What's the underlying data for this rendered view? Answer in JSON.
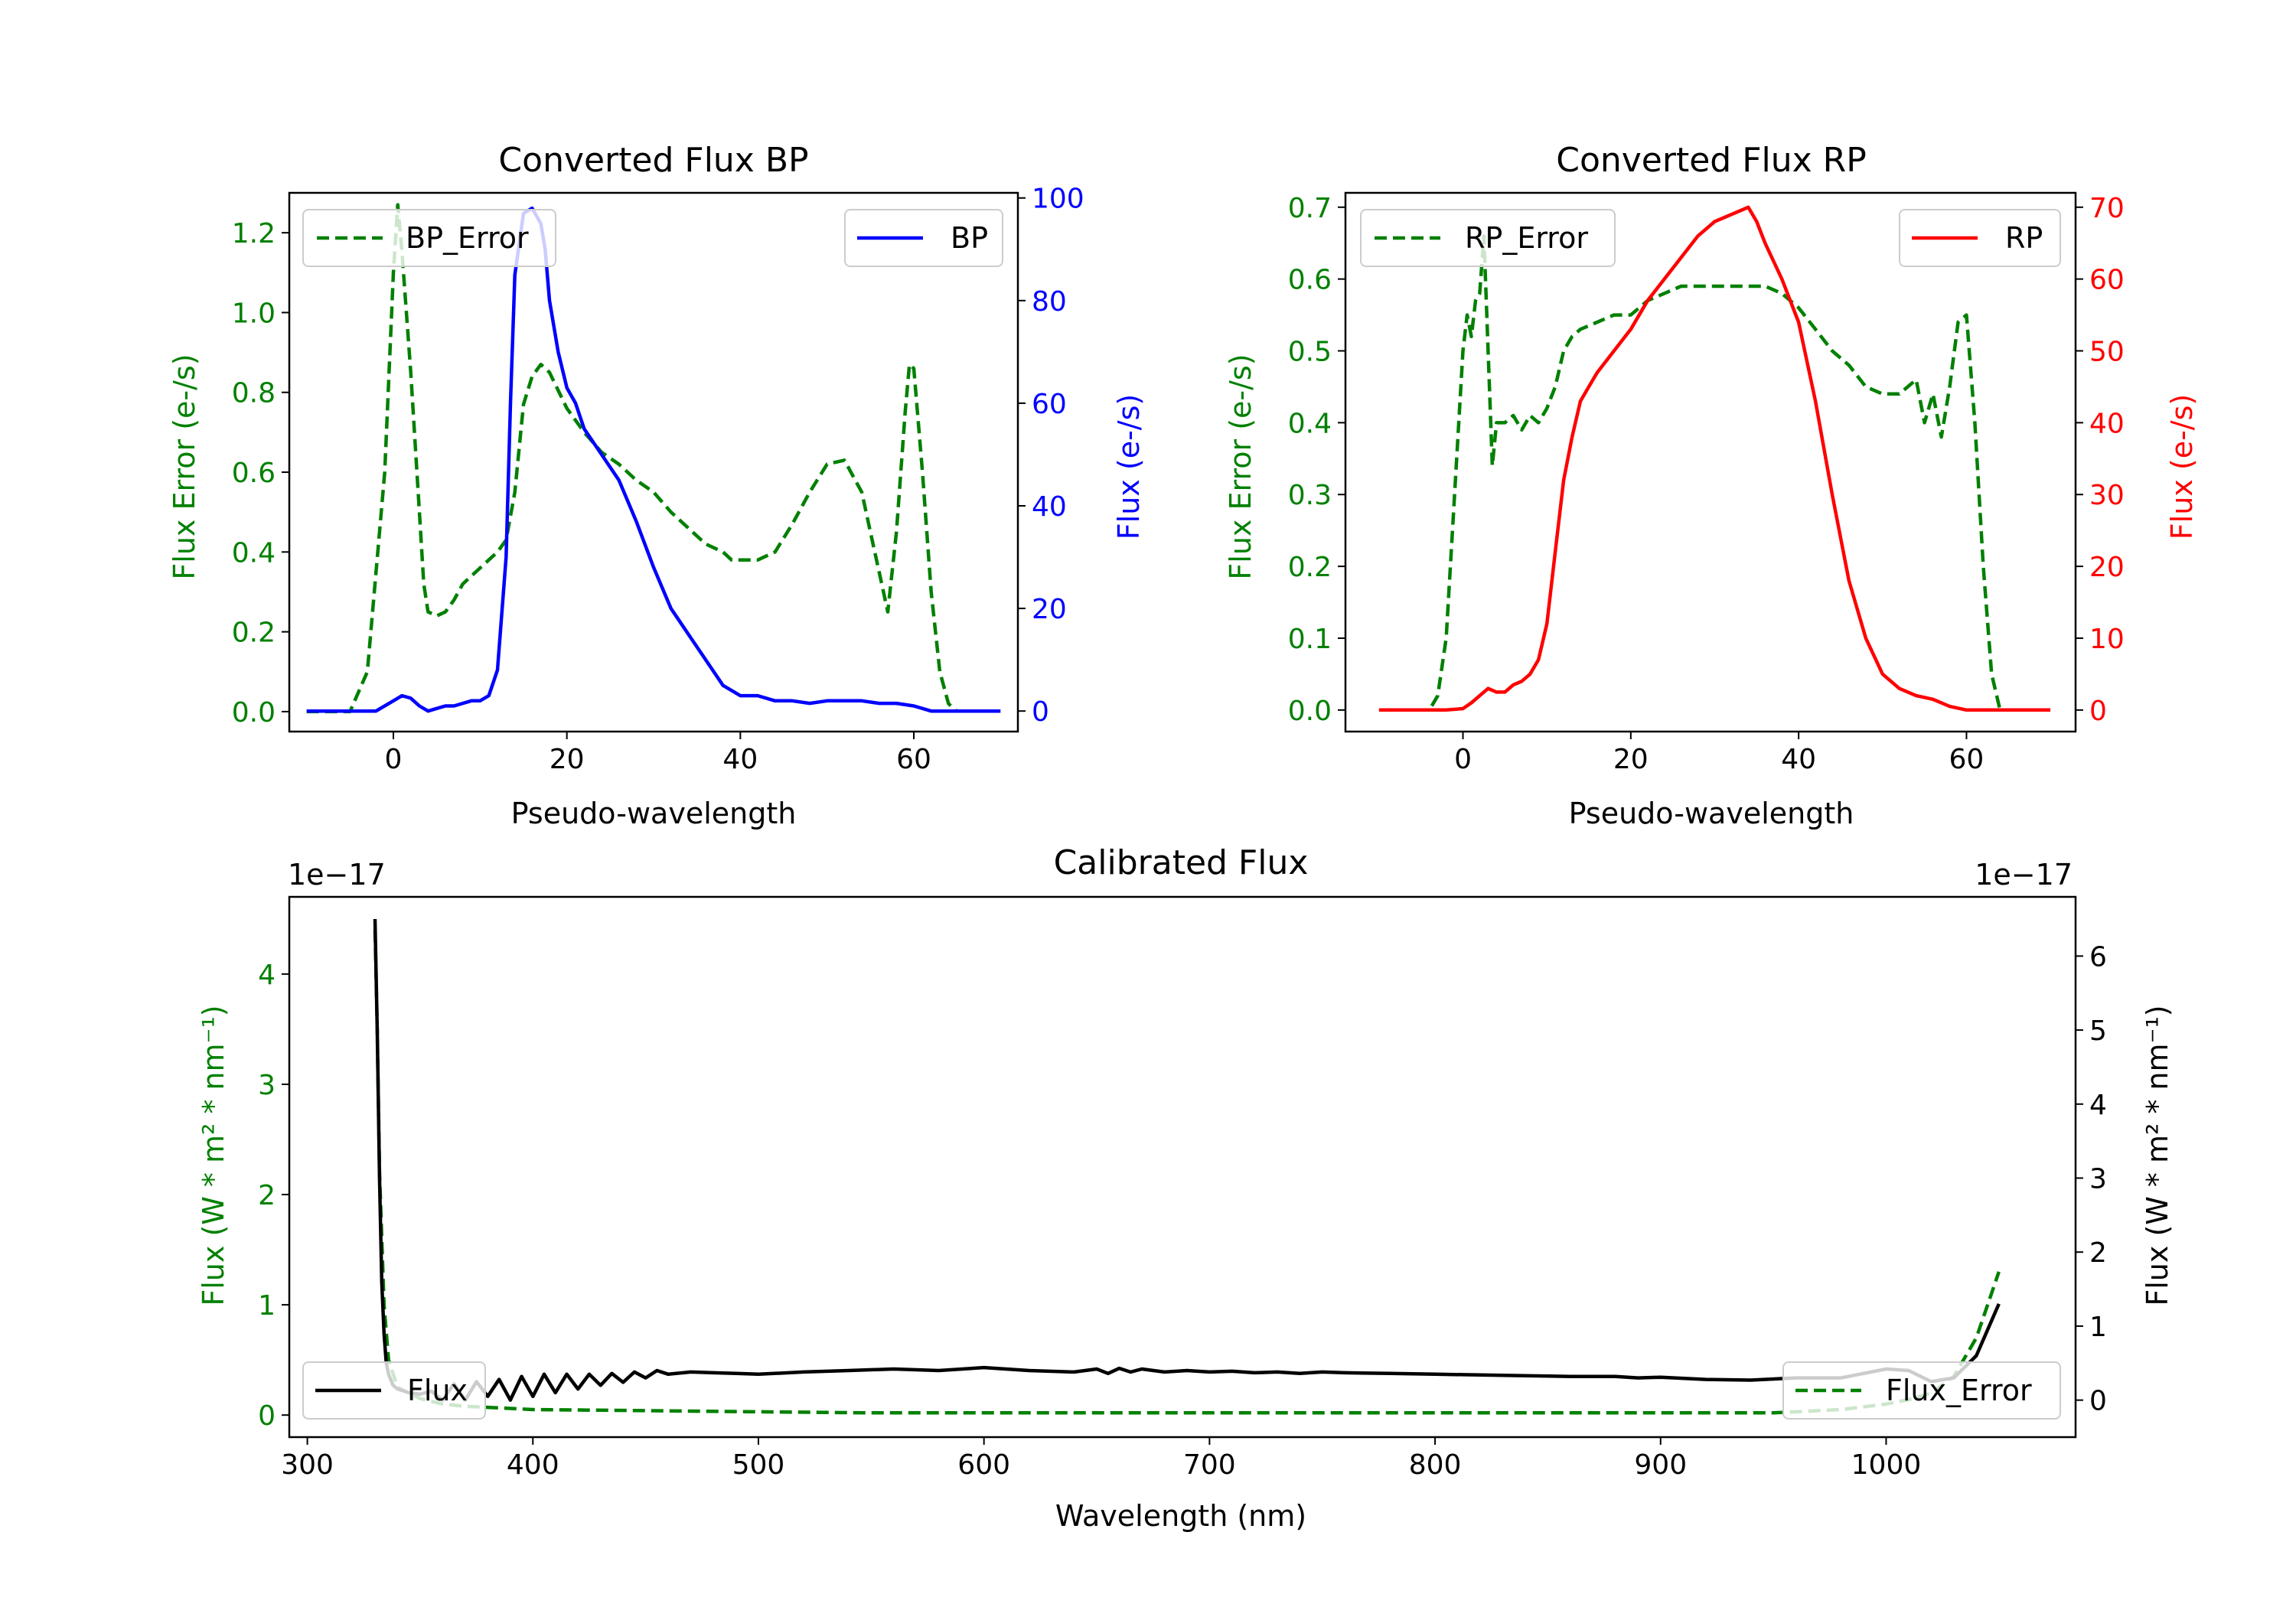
{
  "colors": {
    "green": "#008000",
    "blue": "#0000ff",
    "red": "#ff0000",
    "black": "#000000"
  },
  "chart_data": [
    {
      "type": "line",
      "title": "Converted Flux BP",
      "xlabel": "Pseudo-wavelength",
      "ylabel_left": "Flux Error (e-/s)",
      "ylabel_right": "Flux (e-/s)",
      "xlim": [
        -12,
        72
      ],
      "ylim_left": [
        -0.05,
        1.3
      ],
      "ylim_right": [
        -4,
        101
      ],
      "xticks": [
        0,
        20,
        40,
        60
      ],
      "yticks_left": [
        0.0,
        0.2,
        0.4,
        0.6,
        0.8,
        1.0,
        1.2
      ],
      "ytick_labels_left": [
        "0.0",
        "0.2",
        "0.4",
        "0.6",
        "0.8",
        "1.0",
        "1.2"
      ],
      "yticks_right": [
        0,
        20,
        40,
        60,
        80,
        100
      ],
      "legend_left": {
        "label": "BP_Error",
        "placement": "top-left"
      },
      "legend_right": {
        "label": "BP",
        "placement": "top-right"
      },
      "series": [
        {
          "name": "BP_Error",
          "axis": "left",
          "style": "dashed",
          "color": "#008000",
          "x": [
            -10,
            -5,
            -3,
            -1,
            0,
            0.5,
            1,
            2,
            3,
            3.5,
            4,
            5,
            6,
            7,
            8,
            10,
            12,
            13,
            14,
            15,
            16,
            17,
            18,
            20,
            22,
            24,
            26,
            28,
            30,
            32,
            34,
            36,
            38,
            39,
            40,
            42,
            44,
            46,
            48,
            50,
            52,
            54,
            55,
            56,
            57,
            58,
            59,
            59.5,
            60,
            61,
            62,
            63,
            64,
            65
          ],
          "values": [
            0,
            0,
            0.1,
            0.6,
            1.1,
            1.27,
            1.15,
            0.85,
            0.5,
            0.32,
            0.25,
            0.24,
            0.25,
            0.28,
            0.32,
            0.36,
            0.4,
            0.43,
            0.55,
            0.77,
            0.84,
            0.87,
            0.85,
            0.76,
            0.7,
            0.65,
            0.62,
            0.58,
            0.55,
            0.5,
            0.46,
            0.42,
            0.4,
            0.38,
            0.38,
            0.38,
            0.4,
            0.47,
            0.55,
            0.62,
            0.63,
            0.55,
            0.45,
            0.35,
            0.25,
            0.45,
            0.75,
            0.87,
            0.86,
            0.6,
            0.3,
            0.1,
            0.02,
            0
          ]
        },
        {
          "name": "BP",
          "axis": "right",
          "style": "solid",
          "color": "#0000ff",
          "x": [
            -10,
            -2,
            0,
            1,
            2,
            3,
            4,
            5,
            6,
            7,
            8,
            9,
            10,
            11,
            12,
            13,
            13.5,
            14,
            15,
            16,
            17,
            17.5,
            18,
            19,
            20,
            21,
            22,
            24,
            26,
            28,
            30,
            32,
            34,
            36,
            38,
            40,
            42,
            44,
            46,
            48,
            50,
            52,
            54,
            56,
            58,
            60,
            62,
            64,
            66,
            70
          ],
          "values": [
            0,
            0,
            2,
            3,
            2.5,
            1,
            0,
            0.5,
            1,
            1,
            1.5,
            2,
            2,
            3,
            8,
            30,
            60,
            85,
            97,
            98,
            95,
            90,
            80,
            70,
            63,
            60,
            55,
            50,
            45,
            37,
            28,
            20,
            15,
            10,
            5,
            3,
            3,
            2,
            2,
            1.5,
            2,
            2,
            2,
            1.5,
            1.5,
            1,
            0,
            0,
            0,
            0
          ]
        }
      ]
    },
    {
      "type": "line",
      "title": "Converted Flux RP",
      "xlabel": "Pseudo-wavelength",
      "ylabel_left": "Flux Error (e-/s)",
      "ylabel_right": "Flux (e-/s)",
      "xlim": [
        -14,
        73
      ],
      "ylim_left": [
        -0.03,
        0.72
      ],
      "ylim_right": [
        -3,
        72
      ],
      "xticks": [
        0,
        20,
        40,
        60
      ],
      "yticks_left": [
        0.0,
        0.1,
        0.2,
        0.3,
        0.4,
        0.5,
        0.6,
        0.7
      ],
      "ytick_labels_left": [
        "0.0",
        "0.1",
        "0.2",
        "0.3",
        "0.4",
        "0.5",
        "0.6",
        "0.7"
      ],
      "yticks_right": [
        0,
        10,
        20,
        30,
        40,
        50,
        60,
        70
      ],
      "legend_left": {
        "label": "RP_Error",
        "placement": "top-left"
      },
      "legend_right": {
        "label": "RP",
        "placement": "top-right"
      },
      "series": [
        {
          "name": "RP_Error",
          "axis": "left",
          "style": "dashed",
          "color": "#008000",
          "x": [
            -10,
            -4,
            -3,
            -2,
            -1,
            0,
            0.5,
            1,
            1.5,
            2,
            2.5,
            3,
            3.5,
            4,
            5,
            6,
            7,
            8,
            9,
            10,
            11,
            12,
            13,
            14,
            16,
            18,
            20,
            22,
            24,
            26,
            28,
            30,
            32,
            34,
            36,
            38,
            40,
            42,
            44,
            46,
            48,
            50,
            52,
            53,
            54,
            55,
            56,
            57,
            58,
            59,
            60,
            61,
            62,
            63,
            64,
            66
          ],
          "values": [
            0,
            0,
            0.02,
            0.1,
            0.3,
            0.5,
            0.55,
            0.52,
            0.57,
            0.58,
            0.66,
            0.5,
            0.34,
            0.4,
            0.4,
            0.41,
            0.39,
            0.41,
            0.4,
            0.42,
            0.45,
            0.5,
            0.52,
            0.53,
            0.54,
            0.55,
            0.55,
            0.57,
            0.58,
            0.59,
            0.59,
            0.59,
            0.59,
            0.59,
            0.59,
            0.58,
            0.56,
            0.53,
            0.5,
            0.48,
            0.45,
            0.44,
            0.44,
            0.45,
            0.46,
            0.4,
            0.44,
            0.38,
            0.45,
            0.54,
            0.55,
            0.4,
            0.2,
            0.05,
            0,
            0
          ]
        },
        {
          "name": "RP",
          "axis": "right",
          "style": "solid",
          "color": "#ff0000",
          "x": [
            -10,
            -2,
            0,
            1,
            2,
            3,
            4,
            5,
            6,
            7,
            8,
            9,
            10,
            11,
            12,
            13,
            14,
            15,
            16,
            18,
            20,
            22,
            24,
            26,
            28,
            30,
            32,
            33,
            34,
            35,
            36,
            38,
            40,
            42,
            44,
            46,
            48,
            50,
            52,
            54,
            56,
            58,
            60,
            62,
            66,
            70
          ],
          "values": [
            0,
            0,
            0.2,
            1,
            2,
            3,
            2.5,
            2.5,
            3.5,
            4,
            5,
            7,
            12,
            22,
            32,
            38,
            43,
            45,
            47,
            50,
            53,
            57,
            60,
            63,
            66,
            68,
            69,
            69.5,
            70,
            68,
            65,
            60,
            54,
            43,
            30,
            18,
            10,
            5,
            3,
            2,
            1.5,
            0.5,
            0,
            0,
            0,
            0
          ]
        }
      ]
    },
    {
      "type": "line",
      "title": "Calibrated Flux",
      "xlabel": "Wavelength (nm)",
      "ylabel_left": "Flux (W * m² * nm⁻¹)",
      "ylabel_right": "Flux (W * m² * nm⁻¹)",
      "offset_left": "1e−17",
      "offset_right": "1e−17",
      "xlim": [
        292,
        1084
      ],
      "ylim_left": [
        -0.2,
        4.7
      ],
      "ylim_right": [
        -0.5,
        6.8
      ],
      "xticks": [
        300,
        400,
        500,
        600,
        700,
        800,
        900,
        1000
      ],
      "yticks_left": [
        0,
        1,
        2,
        3,
        4
      ],
      "yticks_right": [
        0,
        1,
        2,
        3,
        4,
        5,
        6
      ],
      "legend_left": {
        "label": "Flux",
        "placement": "lower-left"
      },
      "legend_right": {
        "label": "Flux_Error",
        "placement": "lower-right"
      },
      "series": [
        {
          "name": "Flux_Error",
          "axis": "left",
          "style": "dashed",
          "color": "#008000",
          "x": [
            330,
            331,
            332,
            334,
            336,
            340,
            350,
            360,
            370,
            380,
            390,
            400,
            450,
            500,
            550,
            600,
            650,
            700,
            750,
            800,
            850,
            900,
            950,
            980,
            1000,
            1010,
            1020,
            1030,
            1040,
            1045,
            1050
          ],
          "values": [
            4.4,
            3.5,
            2.2,
            1.0,
            0.5,
            0.25,
            0.15,
            0.1,
            0.08,
            0.07,
            0.06,
            0.05,
            0.04,
            0.03,
            0.02,
            0.02,
            0.02,
            0.02,
            0.02,
            0.02,
            0.02,
            0.02,
            0.02,
            0.05,
            0.1,
            0.14,
            0.2,
            0.35,
            0.7,
            1.0,
            1.3
          ]
        },
        {
          "name": "Flux",
          "axis": "right",
          "style": "solid",
          "color": "#000000",
          "x": [
            330,
            331,
            332,
            333,
            334,
            335,
            336,
            338,
            340,
            345,
            350,
            355,
            360,
            365,
            370,
            375,
            380,
            385,
            390,
            395,
            400,
            405,
            410,
            415,
            420,
            425,
            430,
            435,
            440,
            445,
            450,
            455,
            460,
            470,
            480,
            490,
            500,
            520,
            540,
            560,
            580,
            600,
            620,
            640,
            650,
            655,
            660,
            665,
            670,
            680,
            690,
            700,
            710,
            720,
            730,
            740,
            750,
            760,
            780,
            800,
            820,
            840,
            860,
            880,
            890,
            900,
            920,
            940,
            960,
            980,
            1000,
            1010,
            1020,
            1030,
            1040,
            1050
          ],
          "values": [
            6.5,
            5.0,
            3.0,
            1.6,
            0.9,
            0.5,
            0.35,
            0.2,
            0.15,
            0.1,
            0.08,
            0.12,
            0.0,
            0.22,
            0.0,
            0.25,
            0.05,
            0.28,
            0.0,
            0.32,
            0.05,
            0.35,
            0.1,
            0.35,
            0.15,
            0.35,
            0.2,
            0.36,
            0.24,
            0.38,
            0.3,
            0.4,
            0.35,
            0.38,
            0.37,
            0.36,
            0.35,
            0.38,
            0.4,
            0.42,
            0.4,
            0.44,
            0.4,
            0.38,
            0.42,
            0.36,
            0.43,
            0.38,
            0.42,
            0.38,
            0.4,
            0.38,
            0.39,
            0.37,
            0.38,
            0.36,
            0.38,
            0.37,
            0.36,
            0.35,
            0.34,
            0.33,
            0.32,
            0.32,
            0.3,
            0.31,
            0.28,
            0.27,
            0.3,
            0.3,
            0.42,
            0.4,
            0.25,
            0.3,
            0.6,
            1.3
          ]
        }
      ]
    }
  ]
}
